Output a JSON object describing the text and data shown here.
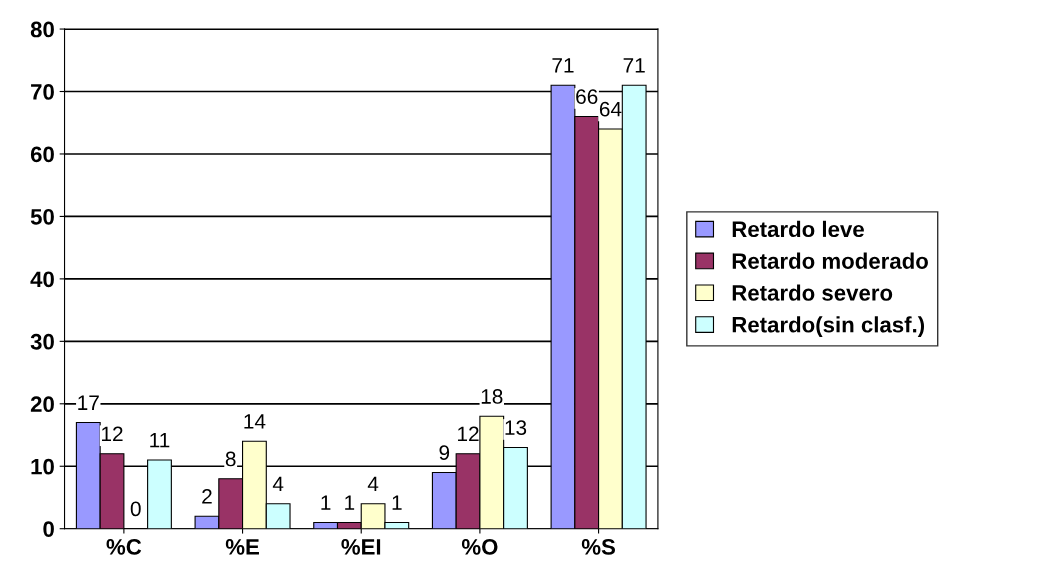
{
  "chart_data": {
    "type": "bar",
    "categories": [
      "%C",
      "%E",
      "%EI",
      "%O",
      "%S"
    ],
    "series": [
      {
        "name": "Retardo leve",
        "color": "#9999ff",
        "values": [
          17,
          2,
          1,
          9,
          71
        ]
      },
      {
        "name": "Retardo moderado",
        "color": "#993366",
        "values": [
          12,
          8,
          1,
          12,
          66
        ]
      },
      {
        "name": "Retardo severo",
        "color": "#ffffcc",
        "values": [
          0,
          14,
          4,
          18,
          64
        ]
      },
      {
        "name": "Retardo(sin clasf.)",
        "color": "#ccffff",
        "values": [
          11,
          4,
          1,
          13,
          71
        ]
      }
    ],
    "ylim": [
      0,
      80
    ],
    "yticks": [
      0,
      10,
      20,
      30,
      40,
      50,
      60,
      70,
      80
    ],
    "grid": "y",
    "legend": "right",
    "data_labels": true
  }
}
